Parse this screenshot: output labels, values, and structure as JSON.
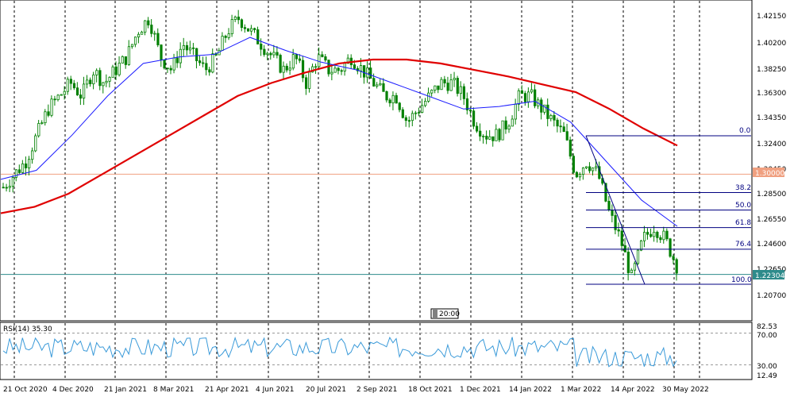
{
  "price_axis": {
    "labels": [
      "1.42150",
      "1.40200",
      "1.38250",
      "1.36300",
      "1.34350",
      "1.32400",
      "1.30450",
      "1.28500",
      "1.26550",
      "1.24600",
      "1.22650",
      "1.20700"
    ],
    "current_price": "1.22304",
    "hline_price": "1.30000"
  },
  "time_axis": {
    "labels": [
      "21 Oct 2020",
      "4 Dec 2020",
      "21 Jan 2021",
      "8 Mar 2021",
      "21 Apr 2021",
      "4 Jun 2021",
      "20 Jul 2021",
      "2 Sep 2021",
      "18 Oct 2021",
      "1 Dec 2021",
      "14 Jan 2022",
      "1 Mar 2022",
      "14 Apr 2022",
      "30 May 2022"
    ]
  },
  "scroll_label": "20:00",
  "fib_levels": [
    "0.0",
    "38.2",
    "50.0",
    "61.8",
    "76.4",
    "100.0"
  ],
  "rsi": {
    "title": "RSI(14) 35.30",
    "axis_labels": [
      "82.53",
      "70.00",
      "30.00",
      "12.49"
    ]
  },
  "colors": {
    "candle": "#008000",
    "slow_ma": "#e00000",
    "fast_ma": "#1a1aff",
    "hline": "#f0a080",
    "bid": "#2e8b8b",
    "fib": "#000080",
    "rsi_line": "#3a9ad9"
  },
  "chart_data": {
    "type": "candlestick",
    "instrument_note": "daily candles with moving averages, Fibonacci retracement and RSI(14) subwindow",
    "price_ticks": [
      1.4215,
      1.402,
      1.3825,
      1.363,
      1.3435,
      1.324,
      1.3045,
      1.285,
      1.2655,
      1.246,
      1.2265,
      1.207
    ],
    "price_range": [
      1.196,
      1.428
    ],
    "horizontal_line": 1.3,
    "current_price": 1.22304,
    "fib_retracement": {
      "high": 1.3295,
      "low": 1.2155,
      "levels": [
        {
          "label": "0.0",
          "value": 1.3295
        },
        {
          "label": "38.2",
          "value": 1.2859
        },
        {
          "label": "50.0",
          "value": 1.2725
        },
        {
          "label": "61.8",
          "value": 1.259
        },
        {
          "label": "76.4",
          "value": 1.2424
        },
        {
          "label": "100.0",
          "value": 1.2155
        }
      ]
    },
    "close_series": [
      1.29,
      1.3,
      1.31,
      1.33,
      1.35,
      1.36,
      1.37,
      1.36,
      1.38,
      1.37,
      1.38,
      1.39,
      1.41,
      1.42,
      1.39,
      1.38,
      1.4,
      1.39,
      1.38,
      1.39,
      1.41,
      1.42,
      1.41,
      1.4,
      1.39,
      1.38,
      1.39,
      1.37,
      1.39,
      1.38,
      1.38,
      1.39,
      1.38,
      1.37,
      1.36,
      1.36,
      1.34,
      1.35,
      1.36,
      1.37,
      1.37,
      1.36,
      1.34,
      1.33,
      1.33,
      1.34,
      1.36,
      1.36,
      1.35,
      1.34,
      1.33,
      1.3,
      1.31,
      1.3,
      1.27,
      1.25,
      1.22,
      1.25,
      1.26,
      1.25,
      1.23
    ],
    "slow_ma_series": [
      1.27,
      1.275,
      1.285,
      1.3,
      1.315,
      1.33,
      1.345,
      1.36,
      1.37,
      1.378,
      1.385,
      1.388,
      1.388,
      1.385,
      1.38,
      1.375,
      1.369,
      1.363,
      1.35,
      1.335,
      1.322
    ],
    "fast_ma_series": [
      1.296,
      1.303,
      1.33,
      1.36,
      1.385,
      1.39,
      1.392,
      1.405,
      1.395,
      1.386,
      1.38,
      1.37,
      1.36,
      1.35,
      1.352,
      1.356,
      1.34,
      1.31,
      1.28,
      1.26
    ],
    "rsi_range": [
      12.49,
      82.53
    ],
    "rsi_levels": [
      70,
      30
    ],
    "rsi_last": 35.3
  }
}
